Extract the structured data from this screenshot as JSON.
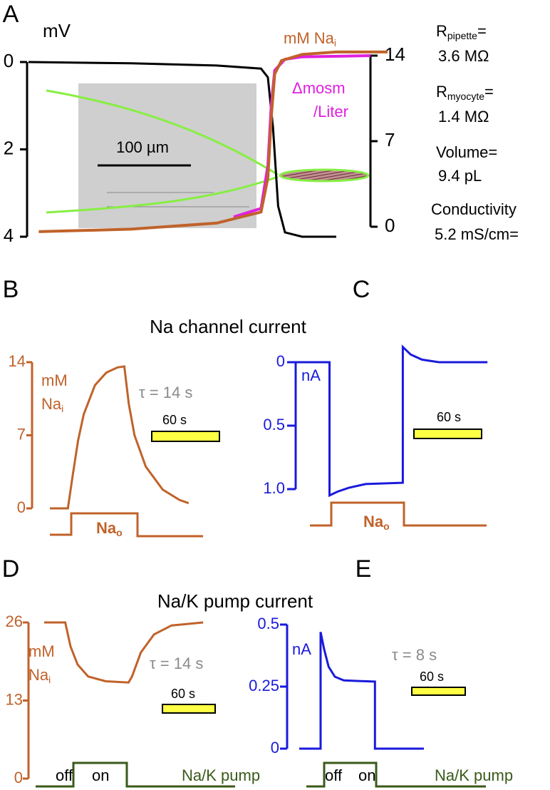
{
  "panel_labels": [
    "A",
    "B",
    "C",
    "D",
    "E"
  ],
  "annotations": [
    {
      "main": "R",
      "sub": "pipette",
      "tail": "=",
      "value": "3.6 MΩ"
    },
    {
      "main": "R",
      "sub": "myocyte",
      "tail": "=",
      "value": "1.4 MΩ"
    },
    {
      "main": "Volume=",
      "value": "9.4 pL"
    },
    {
      "main": "Conductivity",
      "value": "5.2 mS/cm="
    }
  ],
  "micrograph": {
    "scalebar": "100 µm"
  },
  "chart_data": [
    {
      "type": "line",
      "ylabel": [
        "mV"
      ],
      "ylim": [
        0,
        4
      ],
      "y_inverted": true,
      "yticks": [
        0,
        2,
        4
      ],
      "tick_color": "#000000",
      "y2lim": [
        0,
        14
      ],
      "y2ticks": [
        0,
        7,
        14
      ],
      "y2label": [
        "mM Na",
        "i"
      ],
      "y2label_color": "#c0622a",
      "label2": [
        "Δmosm",
        "/Liter"
      ],
      "label2_color": "#e020e0",
      "series": [
        {
          "color": "#000000",
          "x": [
            0,
            30,
            55,
            68,
            70,
            71.5,
            73,
            75,
            80,
            90
          ],
          "values": [
            0,
            0.03,
            0.08,
            0.15,
            0.35,
            1.5,
            3.3,
            3.9,
            4.0,
            4.0
          ]
        },
        {
          "color": "#e020e0",
          "axis": "y2",
          "x": [
            60,
            68,
            70,
            71,
            72,
            75,
            80,
            100
          ],
          "values": [
            0.8,
            1.5,
            5,
            10,
            12.8,
            13.7,
            13.9,
            14
          ]
        },
        {
          "color": "#c0622a",
          "axis": "y2",
          "x": [
            3,
            30,
            55,
            68,
            70,
            71,
            72,
            74,
            80,
            90,
            105
          ],
          "values": [
            -0.4,
            -0.2,
            0.3,
            1.2,
            4,
            9,
            12.5,
            13.6,
            14.1,
            14.3,
            14.3
          ]
        }
      ]
    },
    {
      "type": "line",
      "title": "Na channel current",
      "ylabel": [
        "mM",
        "Na",
        "i"
      ],
      "ylim": [
        0,
        14
      ],
      "yticks": [
        0,
        7,
        14
      ],
      "tick_color": "#c0622a",
      "annotation": "τ = 14 s",
      "scalebar": "60 s",
      "protocol_labels": [
        [
          "Na",
          "o"
        ]
      ],
      "series": [
        {
          "color": "#c0622a",
          "x": [
            0,
            16,
            20,
            25,
            30,
            40,
            50,
            60,
            66,
            70,
            75,
            85,
            100,
            115,
            123
          ],
          "values": [
            0,
            0,
            3,
            6.5,
            9,
            11.8,
            13,
            13.5,
            13.6,
            10,
            7,
            4,
            1.8,
            0.8,
            0.5
          ]
        }
      ]
    },
    {
      "type": "line",
      "ylabel": [
        "nA"
      ],
      "ylim": [
        0,
        1
      ],
      "y_inverted": true,
      "yticks": [
        0,
        0.5,
        {
          "value": 1,
          "label": "1.0"
        }
      ],
      "tick_color": "#1a1adc",
      "scalebar": "60 s",
      "protocol_labels": [
        [
          "Na",
          "o"
        ]
      ],
      "series": [
        {
          "color": "#1a1adc",
          "x": [
            0,
            30,
            30,
            37,
            47,
            62,
            95,
            95,
            102,
            112,
            127,
            170
          ],
          "values": [
            0,
            0,
            1.05,
            1.02,
            0.99,
            0.96,
            0.95,
            -0.12,
            -0.06,
            -0.02,
            0,
            0
          ]
        }
      ]
    },
    {
      "type": "line",
      "title": "Na/K pump current",
      "ylabel": [
        "mM",
        "Na",
        "i"
      ],
      "ylim": [
        0,
        26
      ],
      "yticks": [
        0,
        13,
        26
      ],
      "tick_color": "#c0622a",
      "annotation": "τ = 14 s",
      "scalebar": "60 s",
      "protocol_labels": [
        [
          "off"
        ],
        [
          "on"
        ],
        [
          "Na/K pump"
        ]
      ],
      "series": [
        {
          "color": "#c0622a",
          "x": [
            0,
            24,
            30,
            38,
            50,
            70,
            96,
            100,
            110,
            125,
            145,
            181
          ],
          "values": [
            26,
            26,
            22,
            19,
            17,
            16.2,
            16,
            17,
            21,
            24,
            25.5,
            26
          ]
        }
      ]
    },
    {
      "type": "line",
      "ylabel": [
        "nA"
      ],
      "ylim": [
        0,
        0.5
      ],
      "yticks": [
        0,
        0.25,
        0.5
      ],
      "tick_color": "#1a1adc",
      "annotation": "τ = 8 s",
      "scalebar": "60 s",
      "protocol_labels": [
        [
          "off"
        ],
        [
          "on"
        ],
        [
          "Na/K pump"
        ]
      ],
      "series": [
        {
          "color": "#1a1adc",
          "x": [
            0,
            24,
            24,
            28,
            33,
            40,
            50,
            85,
            85,
            140
          ],
          "values": [
            0,
            0,
            0.47,
            0.4,
            0.33,
            0.29,
            0.275,
            0.27,
            0,
            0
          ]
        }
      ]
    }
  ]
}
